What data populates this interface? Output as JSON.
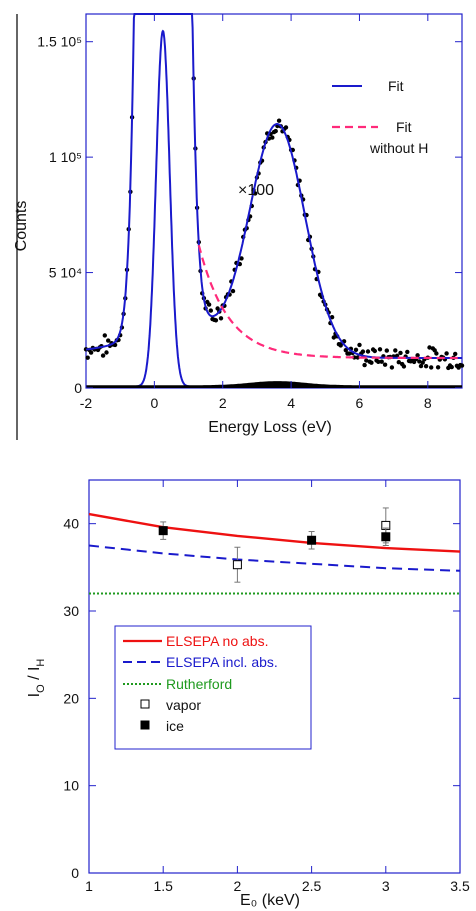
{
  "chart_data": [
    {
      "type": "scatter",
      "xlabel": "Energy Loss (eV)",
      "ylabel": "Counts",
      "xlim": [
        -2,
        9
      ],
      "ylim": [
        0,
        162000
      ],
      "x_ticks": [
        -2,
        0,
        2,
        4,
        6,
        8
      ],
      "y_ticks": [
        {
          "value": 0,
          "label": "0"
        },
        {
          "value": 50000,
          "label": "5 10⁴"
        },
        {
          "value": 100000,
          "label": "1 10⁵"
        },
        {
          "value": 150000,
          "label": "1.5 10⁵"
        }
      ],
      "annotation": "×100",
      "legend": {
        "placement": "top-right",
        "entries": [
          {
            "label": "Fit",
            "color": "#1a1acc",
            "style": "solid"
          },
          {
            "label": "Fit",
            "label2": "without H",
            "color": "#ff2a7a",
            "style": "dashed"
          }
        ]
      },
      "series": [
        {
          "name": "Fit",
          "role": "full_fit",
          "color": "#1a1acc",
          "params": {
            "baseline": 13000,
            "elastic_center": 0.25,
            "elastic_height_scaled": 2500000,
            "elastic_width": 0.5,
            "H_center": 3.6,
            "H_height": 100000,
            "H_width": 1.15
          }
        },
        {
          "name": "Fit without H",
          "role": "fit_without_H",
          "color": "#ff2a7a"
        },
        {
          "name": "elastic peak (×1)",
          "role": "elastic_unscaled",
          "color": "#1a1acc"
        },
        {
          "name": "data",
          "role": "points",
          "color": "#000000",
          "x_range": [
            -2,
            9
          ],
          "step": 0.05,
          "noise": 3500
        }
      ]
    },
    {
      "type": "line",
      "xlabel": "E₀ (keV)",
      "ylabel_main": "I",
      "ylabel_sub1": "O",
      "ylabel_sep": " / ",
      "ylabel_main2": "I",
      "ylabel_sub2": "H",
      "xlim": [
        1,
        3.5
      ],
      "ylim": [
        0,
        45
      ],
      "x_ticks": [
        1,
        1.5,
        2,
        2.5,
        3,
        3.5
      ],
      "y_ticks": [
        0,
        10,
        20,
        30,
        40
      ],
      "legend_placement": "middle-left",
      "series": [
        {
          "name": "ELSEPA no abs.",
          "color": "#ee1111",
          "style": "solid",
          "x": [
            1,
            1.5,
            2,
            2.5,
            3,
            3.5
          ],
          "y": [
            41.1,
            39.6,
            38.6,
            37.8,
            37.2,
            36.8
          ]
        },
        {
          "name": "ELSEPA incl.  abs.",
          "color": "#1a1acc",
          "style": "dashed",
          "x": [
            1,
            1.5,
            2,
            2.5,
            3,
            3.5
          ],
          "y": [
            37.5,
            36.6,
            35.9,
            35.4,
            34.9,
            34.6
          ]
        },
        {
          "name": "Rutherford",
          "color": "#1f9a1f",
          "style": "dotted",
          "x": [
            1,
            3.5
          ],
          "y": [
            32,
            32
          ]
        },
        {
          "name": "vapor",
          "marker": "open-square",
          "x": [
            2.0,
            3.0
          ],
          "y": [
            35.3,
            39.8
          ],
          "err": [
            2.0,
            2.0
          ]
        },
        {
          "name": "ice",
          "marker": "filled-square",
          "x": [
            1.5,
            2.5,
            3.0
          ],
          "y": [
            39.2,
            38.1,
            38.5
          ],
          "err": [
            1.0,
            1.0,
            1.0
          ]
        }
      ]
    }
  ]
}
